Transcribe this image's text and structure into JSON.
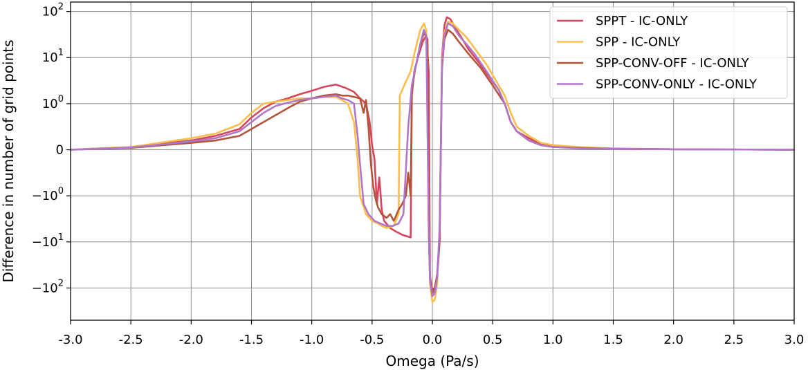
{
  "chart_data": {
    "type": "line",
    "title": "",
    "xlabel": "Omega (Pa/s)",
    "ylabel": "Difference in number of grid points",
    "xlim": [
      -3.0,
      3.0
    ],
    "yscale": "symlog",
    "linthresh": 1,
    "ylim": [
      -500,
      160
    ],
    "grid": true,
    "legend_position": "top-right",
    "x_ticks": [
      -3.0,
      -2.5,
      -2.0,
      -1.5,
      -1.0,
      -0.5,
      0.0,
      0.5,
      1.0,
      1.5,
      2.0,
      2.5,
      3.0
    ],
    "x_tick_labels": [
      "-3.0",
      "-2.5",
      "-2.0",
      "-1.5",
      "-1.0",
      "-0.5",
      "0.0",
      "0.5",
      "1.0",
      "1.5",
      "2.0",
      "2.5",
      "3.0"
    ],
    "y_ticks": [
      100,
      10,
      1,
      0,
      -1,
      -10,
      -100
    ],
    "y_tick_labels": [
      {
        "base": "10",
        "exp": "2"
      },
      {
        "base": "10",
        "exp": "1"
      },
      {
        "base": "10",
        "exp": "0"
      },
      {
        "base": "0",
        "exp": ""
      },
      {
        "base": "−10",
        "exp": "0"
      },
      {
        "base": "−10",
        "exp": "1"
      },
      {
        "base": "−10",
        "exp": "2"
      }
    ],
    "series": [
      {
        "name": "SPPT - IC-ONLY",
        "color": "#d6455a",
        "points": [
          [
            -3.0,
            0
          ],
          [
            -2.5,
            0.06
          ],
          [
            -2.0,
            0.2
          ],
          [
            -1.8,
            0.3
          ],
          [
            -1.6,
            0.45
          ],
          [
            -1.5,
            0.7
          ],
          [
            -1.4,
            0.9
          ],
          [
            -1.3,
            1.1
          ],
          [
            -1.2,
            1.3
          ],
          [
            -1.1,
            1.6
          ],
          [
            -1.0,
            1.9
          ],
          [
            -0.9,
            2.3
          ],
          [
            -0.8,
            2.6
          ],
          [
            -0.72,
            2.2
          ],
          [
            -0.65,
            1.8
          ],
          [
            -0.6,
            1.3
          ],
          [
            -0.55,
            1.0
          ],
          [
            -0.52,
            0.6
          ],
          [
            -0.5,
            0.1
          ],
          [
            -0.48,
            -0.2
          ],
          [
            -0.46,
            -1.5
          ],
          [
            -0.44,
            -0.6
          ],
          [
            -0.42,
            -2.0
          ],
          [
            -0.4,
            -3.5
          ],
          [
            -0.35,
            -5.0
          ],
          [
            -0.3,
            -6.0
          ],
          [
            -0.25,
            -7.0
          ],
          [
            -0.18,
            -8.0
          ],
          [
            -0.17,
            1.5
          ],
          [
            -0.15,
            5.0
          ],
          [
            -0.12,
            10.0
          ],
          [
            -0.08,
            22.0
          ],
          [
            -0.05,
            30.0
          ],
          [
            -0.03,
            5.0
          ],
          [
            -0.02,
            -50.0
          ],
          [
            -0.01,
            -100.0
          ],
          [
            0.0,
            -130.0
          ],
          [
            0.02,
            -110.0
          ],
          [
            0.04,
            -60.0
          ],
          [
            0.06,
            -10.0
          ],
          [
            0.08,
            10.0
          ],
          [
            0.1,
            50.0
          ],
          [
            0.12,
            75.0
          ],
          [
            0.15,
            68.0
          ],
          [
            0.2,
            40.0
          ],
          [
            0.25,
            25.0
          ],
          [
            0.3,
            15.0
          ],
          [
            0.4,
            7.0
          ],
          [
            0.5,
            3.0
          ],
          [
            0.55,
            2.0
          ],
          [
            0.6,
            1.0
          ],
          [
            0.65,
            0.6
          ],
          [
            0.7,
            0.4
          ],
          [
            0.8,
            0.25
          ],
          [
            0.9,
            0.12
          ],
          [
            1.0,
            0.08
          ],
          [
            1.2,
            0.05
          ],
          [
            1.5,
            0.02
          ],
          [
            2.0,
            0.01
          ],
          [
            3.0,
            0
          ]
        ]
      },
      {
        "name": "SPP - IC-ONLY",
        "color": "#fbbe4b",
        "points": [
          [
            -3.0,
            0
          ],
          [
            -2.5,
            0.06
          ],
          [
            -2.0,
            0.25
          ],
          [
            -1.8,
            0.35
          ],
          [
            -1.6,
            0.55
          ],
          [
            -1.5,
            0.8
          ],
          [
            -1.4,
            1.0
          ],
          [
            -1.3,
            1.1
          ],
          [
            -1.2,
            1.2
          ],
          [
            -1.1,
            1.3
          ],
          [
            -1.0,
            1.3
          ],
          [
            -0.9,
            1.4
          ],
          [
            -0.8,
            1.4
          ],
          [
            -0.75,
            1.2
          ],
          [
            -0.7,
            1.0
          ],
          [
            -0.65,
            0.6
          ],
          [
            -0.62,
            -0.2
          ],
          [
            -0.6,
            -1.0
          ],
          [
            -0.55,
            -2.5
          ],
          [
            -0.5,
            -3.5
          ],
          [
            -0.45,
            -4.0
          ],
          [
            -0.42,
            -4.5
          ],
          [
            -0.38,
            -5.0
          ],
          [
            -0.32,
            -4.5
          ],
          [
            -0.28,
            -2.5
          ],
          [
            -0.27,
            1.5
          ],
          [
            -0.22,
            3.0
          ],
          [
            -0.18,
            5.0
          ],
          [
            -0.15,
            12.0
          ],
          [
            -0.1,
            40.0
          ],
          [
            -0.07,
            55.0
          ],
          [
            -0.05,
            40.0
          ],
          [
            -0.03,
            -5.0
          ],
          [
            -0.02,
            -80.0
          ],
          [
            0.0,
            -200.0
          ],
          [
            0.02,
            -180.0
          ],
          [
            0.04,
            -80.0
          ],
          [
            0.06,
            -5.0
          ],
          [
            0.08,
            8.0
          ],
          [
            0.1,
            35.0
          ],
          [
            0.13,
            60.0
          ],
          [
            0.17,
            55.0
          ],
          [
            0.22,
            40.0
          ],
          [
            0.28,
            28.0
          ],
          [
            0.35,
            16.0
          ],
          [
            0.45,
            7.0
          ],
          [
            0.55,
            2.5
          ],
          [
            0.6,
            1.5
          ],
          [
            0.65,
            0.8
          ],
          [
            0.7,
            0.5
          ],
          [
            0.8,
            0.3
          ],
          [
            0.9,
            0.15
          ],
          [
            1.0,
            0.1
          ],
          [
            1.2,
            0.06
          ],
          [
            1.5,
            0.03
          ],
          [
            2.0,
            0.01
          ],
          [
            3.0,
            0
          ]
        ]
      },
      {
        "name": "SPP-CONV-OFF - IC-ONLY",
        "color": "#b3533a",
        "points": [
          [
            -3.0,
            0
          ],
          [
            -2.5,
            0.04
          ],
          [
            -2.0,
            0.15
          ],
          [
            -1.8,
            0.2
          ],
          [
            -1.6,
            0.3
          ],
          [
            -1.5,
            0.45
          ],
          [
            -1.4,
            0.6
          ],
          [
            -1.3,
            0.75
          ],
          [
            -1.2,
            0.9
          ],
          [
            -1.1,
            1.1
          ],
          [
            -1.0,
            1.3
          ],
          [
            -0.9,
            1.5
          ],
          [
            -0.8,
            1.6
          ],
          [
            -0.75,
            1.5
          ],
          [
            -0.7,
            1.5
          ],
          [
            -0.65,
            1.4
          ],
          [
            -0.6,
            1.3
          ],
          [
            -0.57,
            0.8
          ],
          [
            -0.55,
            1.2
          ],
          [
            -0.53,
            0.5
          ],
          [
            -0.51,
            -0.3
          ],
          [
            -0.49,
            -0.8
          ],
          [
            -0.47,
            -1.2
          ],
          [
            -0.45,
            -1.8
          ],
          [
            -0.42,
            -2.5
          ],
          [
            -0.38,
            -3.0
          ],
          [
            -0.35,
            -2.5
          ],
          [
            -0.32,
            -3.5
          ],
          [
            -0.28,
            -2.0
          ],
          [
            -0.25,
            -1.5
          ],
          [
            -0.22,
            -1.0
          ],
          [
            -0.2,
            -0.5
          ],
          [
            -0.18,
            -1.0
          ],
          [
            -0.17,
            2.0
          ],
          [
            -0.14,
            6.0
          ],
          [
            -0.1,
            18.0
          ],
          [
            -0.07,
            35.0
          ],
          [
            -0.04,
            25.0
          ],
          [
            -0.03,
            -5.0
          ],
          [
            -0.02,
            -60.0
          ],
          [
            0.0,
            -110.0
          ],
          [
            0.02,
            -100.0
          ],
          [
            0.04,
            -50.0
          ],
          [
            0.06,
            -8.0
          ],
          [
            0.08,
            6.0
          ],
          [
            0.1,
            25.0
          ],
          [
            0.13,
            40.0
          ],
          [
            0.17,
            33.0
          ],
          [
            0.22,
            22.0
          ],
          [
            0.3,
            12.0
          ],
          [
            0.4,
            6.0
          ],
          [
            0.5,
            2.5
          ],
          [
            0.6,
            1.0
          ],
          [
            0.65,
            0.6
          ],
          [
            0.7,
            0.4
          ],
          [
            0.8,
            0.2
          ],
          [
            0.9,
            0.1
          ],
          [
            1.0,
            0.06
          ],
          [
            1.2,
            0.04
          ],
          [
            1.5,
            0.02
          ],
          [
            2.0,
            0.01
          ],
          [
            3.0,
            0
          ]
        ]
      },
      {
        "name": "SPP-CONV-ONLY - IC-ONLY",
        "color": "#b077c9",
        "points": [
          [
            -3.0,
            0
          ],
          [
            -2.5,
            0.05
          ],
          [
            -2.0,
            0.18
          ],
          [
            -1.8,
            0.25
          ],
          [
            -1.6,
            0.4
          ],
          [
            -1.5,
            0.6
          ],
          [
            -1.4,
            0.8
          ],
          [
            -1.3,
            0.95
          ],
          [
            -1.2,
            1.05
          ],
          [
            -1.1,
            1.2
          ],
          [
            -1.0,
            1.3
          ],
          [
            -0.9,
            1.4
          ],
          [
            -0.8,
            1.5
          ],
          [
            -0.75,
            1.3
          ],
          [
            -0.7,
            1.2
          ],
          [
            -0.65,
            1.0
          ],
          [
            -0.62,
            0.3
          ],
          [
            -0.6,
            -0.3
          ],
          [
            -0.57,
            -1.5
          ],
          [
            -0.53,
            -2.5
          ],
          [
            -0.48,
            -3.5
          ],
          [
            -0.43,
            -4.0
          ],
          [
            -0.38,
            -4.5
          ],
          [
            -0.33,
            -4.5
          ],
          [
            -0.28,
            -4.0
          ],
          [
            -0.24,
            -2.5
          ],
          [
            -0.2,
            0.5
          ],
          [
            -0.17,
            2.5
          ],
          [
            -0.14,
            6.0
          ],
          [
            -0.1,
            20.0
          ],
          [
            -0.07,
            40.0
          ],
          [
            -0.05,
            30.0
          ],
          [
            -0.03,
            -5.0
          ],
          [
            -0.02,
            -70.0
          ],
          [
            0.0,
            -150.0
          ],
          [
            0.02,
            -130.0
          ],
          [
            0.04,
            -60.0
          ],
          [
            0.06,
            -5.0
          ],
          [
            0.08,
            7.0
          ],
          [
            0.1,
            30.0
          ],
          [
            0.13,
            55.0
          ],
          [
            0.17,
            48.0
          ],
          [
            0.22,
            30.0
          ],
          [
            0.28,
            20.0
          ],
          [
            0.35,
            12.0
          ],
          [
            0.45,
            5.0
          ],
          [
            0.55,
            2.0
          ],
          [
            0.6,
            1.0
          ],
          [
            0.65,
            0.6
          ],
          [
            0.7,
            0.4
          ],
          [
            0.8,
            0.2
          ],
          [
            0.9,
            0.1
          ],
          [
            1.0,
            0.06
          ],
          [
            1.2,
            0.03
          ],
          [
            1.5,
            0.02
          ],
          [
            2.0,
            0.01
          ],
          [
            3.0,
            0
          ]
        ]
      }
    ]
  }
}
